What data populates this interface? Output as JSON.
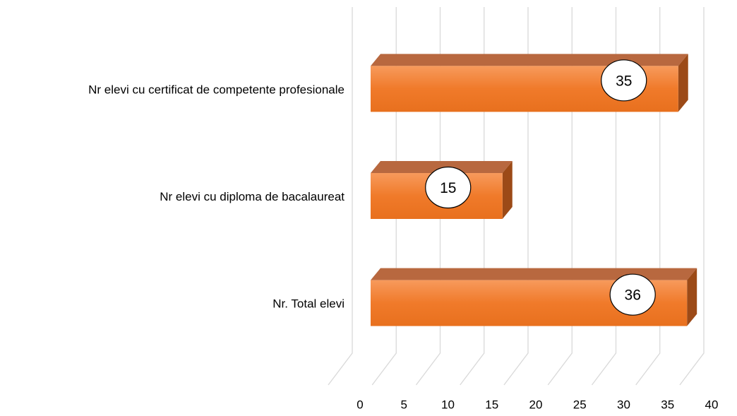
{
  "chart_data": {
    "type": "bar",
    "orientation": "horizontal",
    "categories": [
      "Nr elevi cu certificat de competente profesionale",
      "Nr elevi cu diploma de bacalaureat",
      "Nr. Total elevi"
    ],
    "values": [
      35,
      15,
      36
    ],
    "color": "#ed7d31",
    "xlim": [
      0,
      40
    ],
    "xticks": [
      0,
      5,
      10,
      15,
      20,
      25,
      30,
      35,
      40
    ],
    "grid": true
  }
}
